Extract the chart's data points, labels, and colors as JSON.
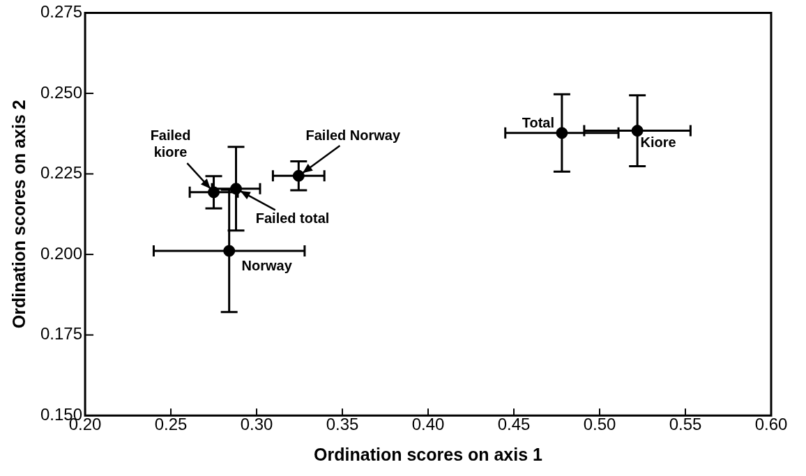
{
  "chart_data": {
    "type": "scatter",
    "xlabel": "Ordination scores on axis 1",
    "ylabel": "Ordination scores on axis 2",
    "x": [
      0.275,
      0.288,
      0.3245,
      0.284,
      0.478,
      0.522
    ],
    "values": [
      0.2193,
      0.2204,
      0.2244,
      0.2011,
      0.2377,
      0.2384
    ],
    "errors": [
      0.005,
      0.013,
      0.0045,
      0.019,
      0.012,
      0.011
    ],
    "xerrors": [
      0.014,
      0.014,
      0.015,
      0.044,
      0.033,
      0.031
    ],
    "color": "#000000",
    "marker": "circle",
    "grid": false,
    "legend": false,
    "xlim": [
      0.2,
      0.6
    ],
    "ylim": [
      0.15,
      0.275
    ],
    "xticks": [
      {
        "value": 0.2,
        "label": "0.20"
      },
      {
        "value": 0.25,
        "label": "0.25"
      },
      {
        "value": 0.3,
        "label": "0.30"
      },
      {
        "value": 0.35,
        "label": "0.35"
      },
      {
        "value": 0.4,
        "label": "0.40"
      },
      {
        "value": 0.45,
        "label": "0.45"
      },
      {
        "value": 0.5,
        "label": "0.50"
      },
      {
        "value": 0.55,
        "label": "0.55"
      },
      {
        "value": 0.6,
        "label": "0.60"
      }
    ],
    "yticks": [
      {
        "value": 0.15,
        "label": "0.150"
      },
      {
        "value": 0.175,
        "label": "0.175"
      },
      {
        "value": 0.2,
        "label": "0.200"
      },
      {
        "value": 0.225,
        "label": "0.225"
      },
      {
        "value": 0.25,
        "label": "0.250"
      },
      {
        "value": 0.275,
        "label": "0.275"
      }
    ],
    "annotations": [
      {
        "text": "Failed\nkiore",
        "x": 0.275,
        "y": 0.2193
      },
      {
        "text": "Failed Norway",
        "x": 0.3245,
        "y": 0.2244
      },
      {
        "text": "Failed total",
        "x": 0.288,
        "y": 0.2204
      },
      {
        "text": "Norway",
        "x": 0.284,
        "y": 0.2011
      },
      {
        "text": "Total",
        "x": 0.478,
        "y": 0.2377
      },
      {
        "text": "Kiore",
        "x": 0.522,
        "y": 0.2384
      }
    ]
  }
}
